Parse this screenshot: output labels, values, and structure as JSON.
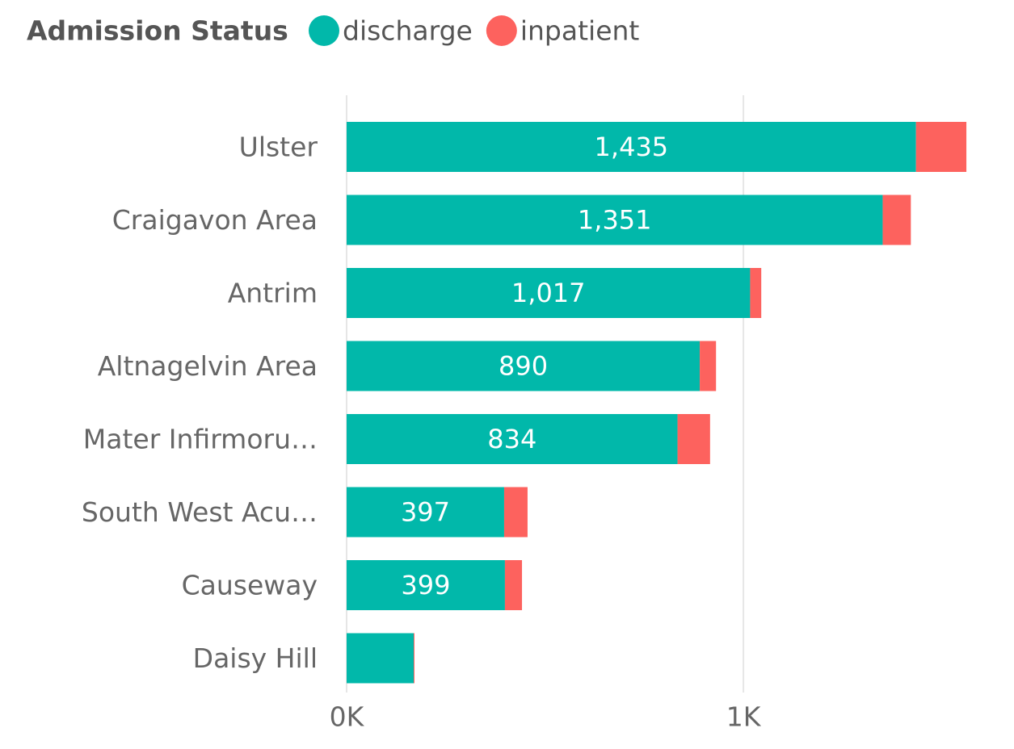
{
  "chart_data": {
    "type": "stacked-bar-horizontal",
    "legend_title": "Admission Status",
    "categories": [
      "Ulster",
      "Craigavon Area",
      "Antrim",
      "Altnagelvin Area",
      "Mater Infirmoru…",
      "South West Acu…",
      "Causeway",
      "Daisy Hill"
    ],
    "series": [
      {
        "name": "discharge",
        "color": "#01b8aa",
        "values": [
          1435,
          1351,
          1017,
          890,
          834,
          397,
          399,
          169
        ],
        "value_labels": [
          "1,435",
          "1,351",
          "1,017",
          "890",
          "834",
          "397",
          "399",
          null
        ]
      },
      {
        "name": "inpatient",
        "color": "#fd625e",
        "values": [
          127,
          71,
          28,
          41,
          82,
          59,
          43,
          2
        ]
      }
    ],
    "xlim": [
      0,
      1570
    ],
    "xticks": [
      {
        "value": 0,
        "label": "0K"
      },
      {
        "value": 1000,
        "label": "1K"
      }
    ],
    "grid": true,
    "legend": "top-left"
  }
}
